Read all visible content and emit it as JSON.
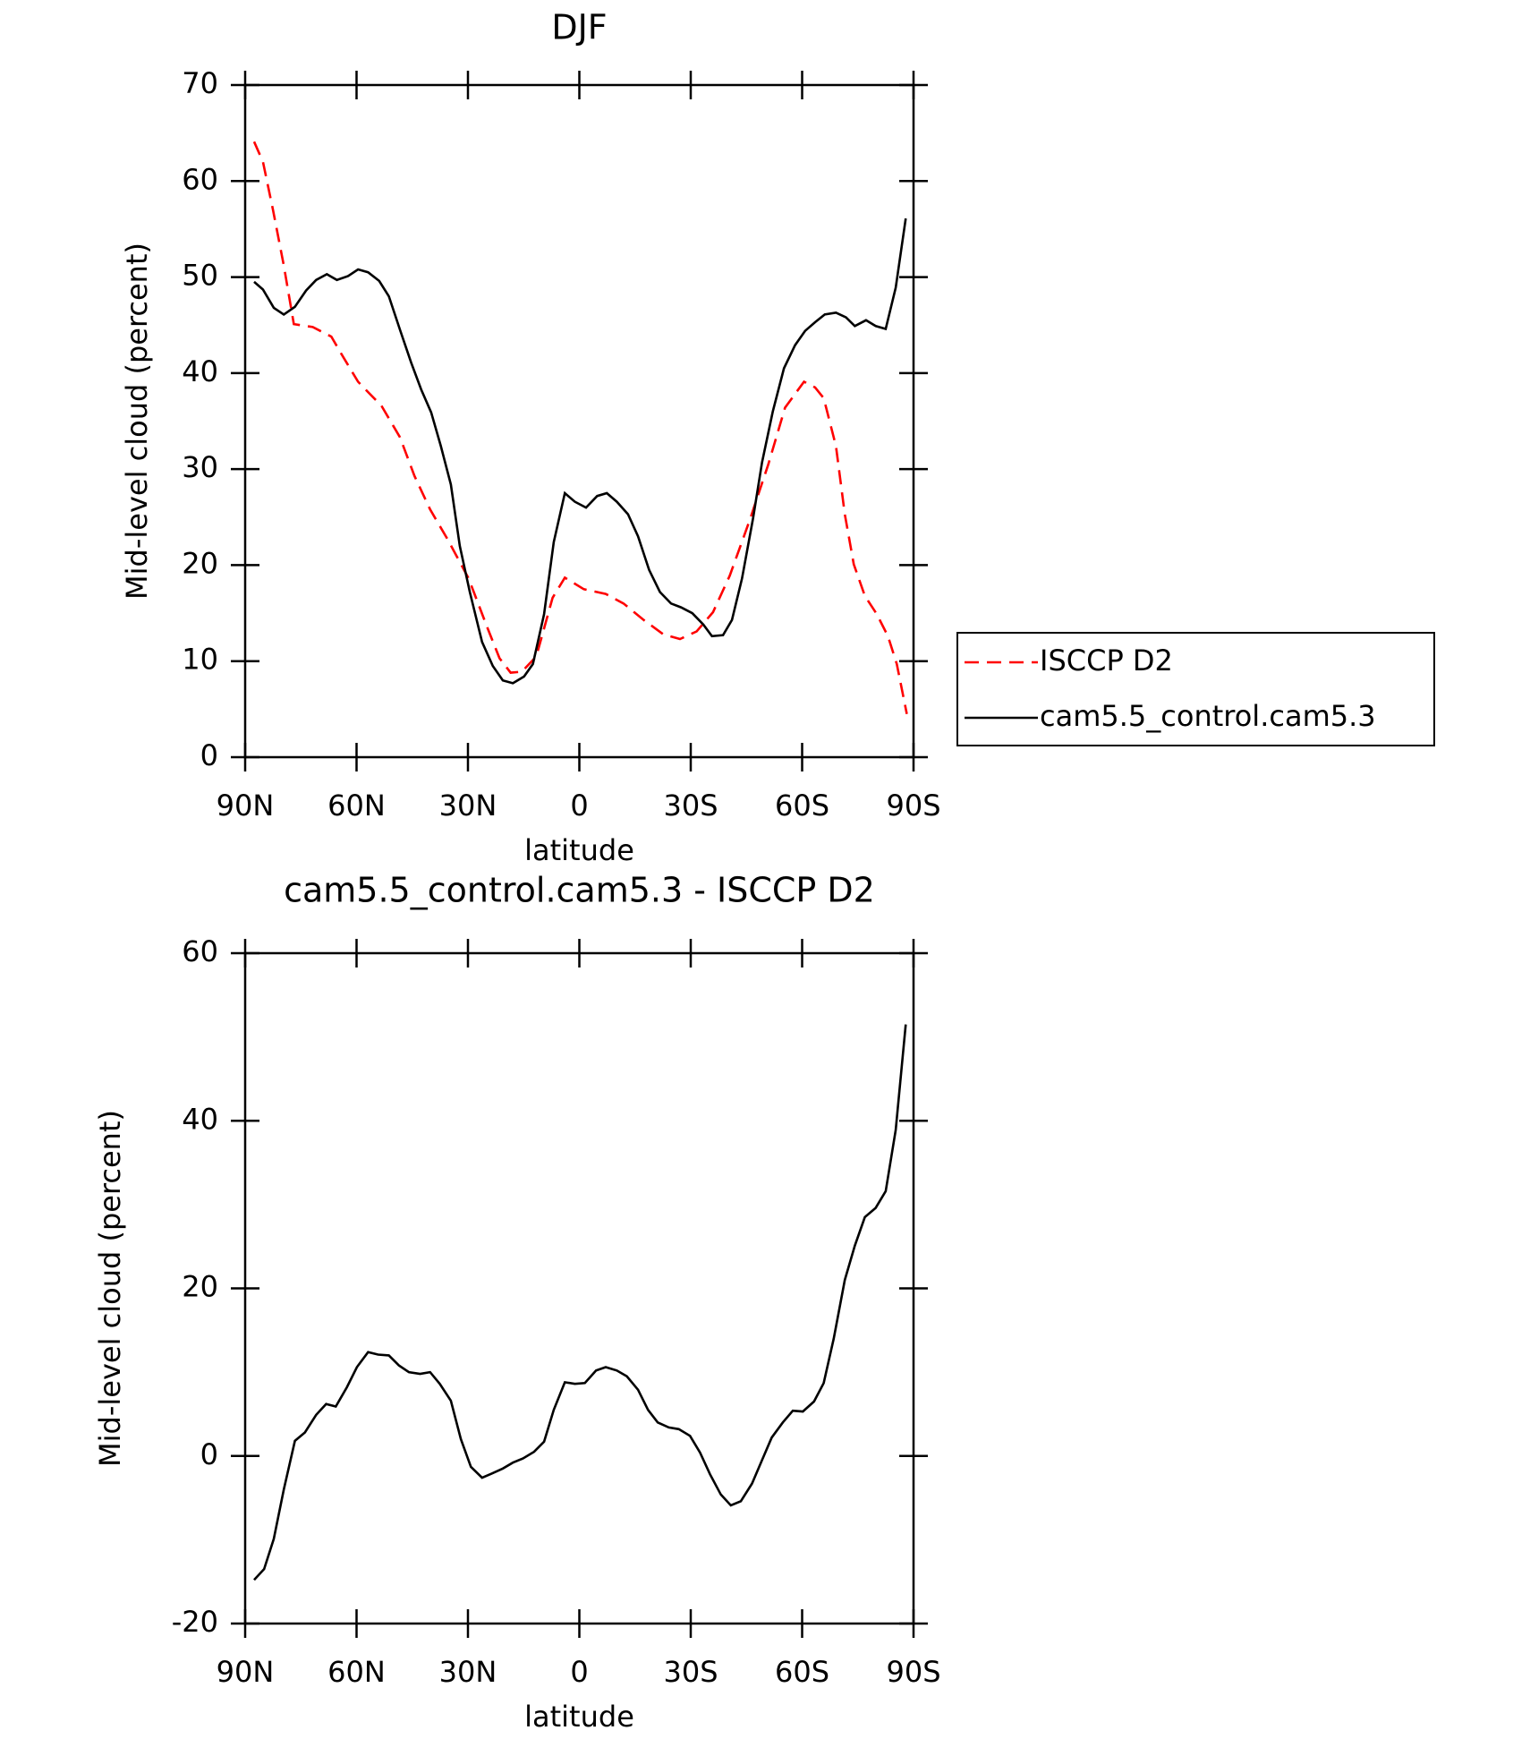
{
  "chart_data": [
    {
      "type": "line",
      "title": "DJF",
      "x_label": "latitude",
      "y_label": "Mid-level cloud (percent)",
      "xlim": [
        90,
        -90
      ],
      "xticks": [
        {
          "value": 90,
          "label": "90N"
        },
        {
          "value": 60,
          "label": "60N"
        },
        {
          "value": 30,
          "label": "30N"
        },
        0,
        {
          "value": -30,
          "label": "30S"
        },
        {
          "value": -60,
          "label": "60S"
        },
        {
          "value": -90,
          "label": "90S"
        }
      ],
      "ylim": [
        0,
        70
      ],
      "yticks": [
        0,
        10,
        20,
        30,
        40,
        50,
        60,
        70
      ],
      "legend": "right",
      "series": [
        {
          "name": "ISCCP D2",
          "color": "#ff0000",
          "dash": "dashed",
          "x": [
            87.6,
            85.2,
            82.5,
            79.6,
            76.9,
            71.8,
            66.8,
            64.1,
            59.6,
            56.6,
            53.3,
            48.3,
            44.4,
            40.2,
            35.5,
            29.8,
            25.0,
            21.5,
            18.5,
            15.5,
            11.6,
            7.2,
            3.9,
            -1.2,
            -7.1,
            -11.9,
            -17.3,
            -22.6,
            -27.1,
            -31.6,
            -36.0,
            -40.5,
            -45.9,
            -50.9,
            -55.4,
            -60.5,
            -63.5,
            -65.8,
            -69.1,
            -71.5,
            -73.9,
            -76.9,
            -80.1,
            -83.1,
            -85.5,
            -88.2
          ],
          "values": [
            64.1,
            62.0,
            57.0,
            51.2,
            45.1,
            44.8,
            43.8,
            42.0,
            39.1,
            37.9,
            36.6,
            33.3,
            29.3,
            25.8,
            22.7,
            18.6,
            13.7,
            10.3,
            8.8,
            8.9,
            10.5,
            16.6,
            18.7,
            17.5,
            17.0,
            16.0,
            14.3,
            12.8,
            12.3,
            13.1,
            15.1,
            18.9,
            24.7,
            30.5,
            36.4,
            39.1,
            38.5,
            37.4,
            32.4,
            25.3,
            20.1,
            16.8,
            14.9,
            12.6,
            9.7,
            4.5
          ]
        },
        {
          "name": "cam5.5_control.cam5.3",
          "color": "#000000",
          "dash": "solid",
          "x": [
            87.6,
            85.2,
            82.3,
            79.6,
            76.6,
            73.6,
            70.9,
            68.0,
            65.3,
            62.3,
            59.6,
            56.9,
            53.9,
            51.3,
            48.3,
            45.3,
            42.6,
            39.9,
            37.3,
            34.6,
            32.2,
            29.5,
            26.2,
            23.3,
            20.6,
            17.9,
            14.9,
            12.5,
            9.5,
            6.9,
            3.9,
            1.2,
            -1.8,
            -4.8,
            -7.4,
            -10.1,
            -13.1,
            -15.8,
            -18.8,
            -21.7,
            -24.7,
            -27.4,
            -30.4,
            -33.4,
            -35.7,
            -38.7,
            -41.1,
            -43.8,
            -46.8,
            -49.2,
            -52.1,
            -55.1,
            -58.1,
            -60.8,
            -63.5,
            -66.1,
            -69.1,
            -71.8,
            -74.2,
            -77.2,
            -79.8,
            -82.5,
            -85.2,
            -87.9
          ],
          "values": [
            49.5,
            48.7,
            46.8,
            46.1,
            46.9,
            48.6,
            49.7,
            50.3,
            49.7,
            50.1,
            50.8,
            50.5,
            49.6,
            48.0,
            44.5,
            41.1,
            38.3,
            35.9,
            32.4,
            28.4,
            22.0,
            17.2,
            12.0,
            9.5,
            8.0,
            7.7,
            8.4,
            9.7,
            14.9,
            22.4,
            27.5,
            26.6,
            26.0,
            27.2,
            27.5,
            26.6,
            25.3,
            23.0,
            19.5,
            17.2,
            16.0,
            15.6,
            15.0,
            13.8,
            12.6,
            12.7,
            14.3,
            18.6,
            24.9,
            30.7,
            36.0,
            40.5,
            42.9,
            44.4,
            45.3,
            46.1,
            46.3,
            45.8,
            44.9,
            45.5,
            44.9,
            44.6,
            48.9,
            56.1
          ]
        }
      ]
    },
    {
      "type": "line",
      "title": "cam5.5_control.cam5.3 - ISCCP D2",
      "x_label": "latitude",
      "y_label": "Mid-level cloud (percent)",
      "xlim": [
        90,
        -90
      ],
      "xticks": [
        {
          "value": 90,
          "label": "90N"
        },
        {
          "value": 60,
          "label": "60N"
        },
        {
          "value": 30,
          "label": "30N"
        },
        0,
        {
          "value": -30,
          "label": "30S"
        },
        {
          "value": -60,
          "label": "60S"
        },
        {
          "value": -90,
          "label": "90S"
        }
      ],
      "ylim": [
        -20,
        60
      ],
      "yticks": [
        -20,
        0,
        20,
        40,
        60
      ],
      "series": [
        {
          "color": "#000000",
          "dash": "solid",
          "x": [
            87.6,
            84.9,
            82.3,
            79.6,
            76.6,
            73.9,
            70.9,
            68.2,
            65.6,
            62.6,
            59.9,
            56.9,
            54.2,
            51.3,
            48.6,
            45.9,
            42.9,
            40.2,
            37.6,
            34.6,
            31.9,
            29.2,
            26.2,
            23.6,
            20.6,
            17.9,
            15.2,
            12.2,
            9.5,
            6.9,
            3.9,
            1.2,
            -1.5,
            -4.5,
            -7.1,
            -10.1,
            -12.8,
            -15.8,
            -18.5,
            -21.1,
            -24.1,
            -26.8,
            -29.8,
            -32.5,
            -35.2,
            -38.1,
            -40.8,
            -43.5,
            -46.5,
            -49.2,
            -51.8,
            -54.8,
            -57.5,
            -60.2,
            -63.2,
            -65.8,
            -68.5,
            -71.5,
            -74.2,
            -76.9,
            -79.8,
            -82.5,
            -85.2,
            -87.9
          ],
          "values": [
            -14.8,
            -13.5,
            -9.9,
            -4.0,
            1.8,
            2.8,
            4.9,
            6.2,
            5.9,
            8.2,
            10.6,
            12.4,
            12.1,
            12.0,
            10.8,
            10.0,
            9.8,
            10.0,
            8.6,
            6.6,
            2.0,
            -1.3,
            -2.6,
            -2.1,
            -1.5,
            -0.8,
            -0.3,
            0.5,
            1.7,
            5.5,
            8.8,
            8.6,
            8.7,
            10.2,
            10.6,
            10.2,
            9.5,
            7.9,
            5.5,
            4.0,
            3.4,
            3.2,
            2.4,
            0.4,
            -2.2,
            -4.6,
            -5.9,
            -5.4,
            -3.3,
            -0.5,
            2.2,
            4.0,
            5.4,
            5.3,
            6.5,
            8.7,
            14.0,
            21.0,
            25.1,
            28.5,
            29.6,
            31.6,
            38.9,
            51.5
          ]
        }
      ]
    }
  ]
}
